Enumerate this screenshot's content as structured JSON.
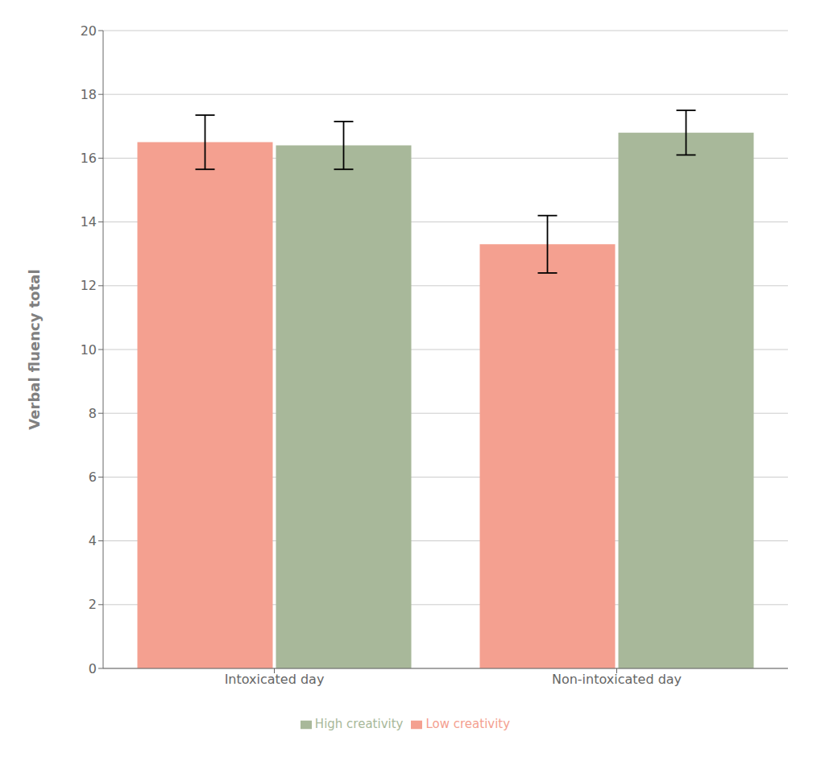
{
  "chart_data": {
    "type": "bar",
    "ylabel": "Verbal fluency total",
    "categories": [
      "Intoxicated day",
      "Non-intoxicated day"
    ],
    "series": [
      {
        "name": "Low creativity",
        "color": "#F4A090",
        "values": [
          16.5,
          13.3
        ],
        "errors": [
          0.85,
          0.9
        ]
      },
      {
        "name": "High creativity",
        "color": "#A8B89A",
        "values": [
          16.4,
          16.8
        ],
        "errors": [
          0.75,
          0.7
        ]
      }
    ],
    "ylim": [
      0,
      20
    ],
    "yticks": [
      0,
      2,
      4,
      6,
      8,
      10,
      12,
      14,
      16,
      18,
      20
    ],
    "grid": true,
    "legend": "bottom"
  }
}
